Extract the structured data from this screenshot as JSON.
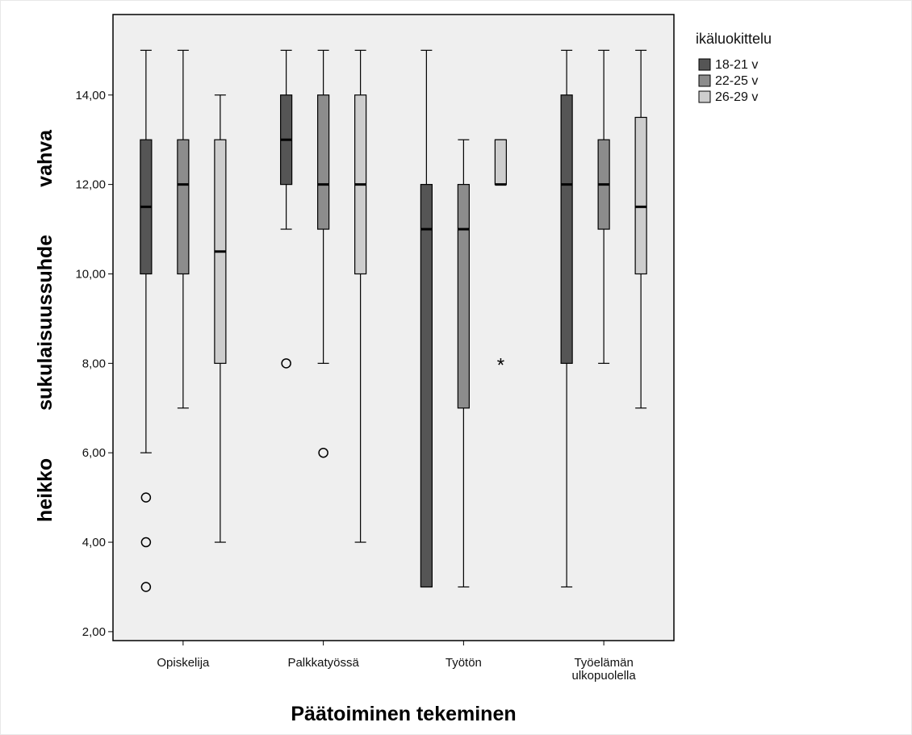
{
  "chart_data": {
    "type": "boxplot",
    "title": "",
    "xlabel": "Päätoiminen tekeminen",
    "ylabel": {
      "low": "heikko",
      "middle": "sukulaisuussuhde",
      "high": "vahva"
    },
    "ylim": [
      1.8,
      15.8
    ],
    "yticks": [
      2,
      4,
      6,
      8,
      10,
      12,
      14
    ],
    "ytick_labels": [
      "2,00",
      "4,00",
      "6,00",
      "8,00",
      "10,00",
      "12,00",
      "14,00"
    ],
    "grid": false,
    "legend": {
      "title": "ikäluokittelu",
      "placement": "top-right",
      "entries": [
        "18-21 v",
        "22-25 v",
        "26-29 v"
      ]
    },
    "categories": [
      {
        "lines": [
          "Opiskelija"
        ]
      },
      {
        "lines": [
          "Palkkatyössä"
        ]
      },
      {
        "lines": [
          "Työtön"
        ]
      },
      {
        "lines": [
          "Työelämän",
          "ulkopuolella"
        ]
      }
    ],
    "series": [
      {
        "name": "18-21 v",
        "color": "#555555",
        "boxes": [
          {
            "min": 6,
            "q1": 10,
            "median": 11.5,
            "q3": 13,
            "max": 15,
            "outliers": [
              5,
              4,
              3
            ],
            "extremes": []
          },
          {
            "min": 11,
            "q1": 12,
            "median": 13,
            "q3": 14,
            "max": 15,
            "outliers": [
              8
            ],
            "extremes": []
          },
          {
            "min": 3,
            "q1": 3,
            "median": 11,
            "q3": 12,
            "max": 15,
            "outliers": [],
            "extremes": []
          },
          {
            "min": 3,
            "q1": 8,
            "median": 12,
            "q3": 14,
            "max": 15,
            "outliers": [],
            "extremes": []
          }
        ]
      },
      {
        "name": "22-25 v",
        "color": "#8c8c8c",
        "boxes": [
          {
            "min": 7,
            "q1": 10,
            "median": 12,
            "q3": 13,
            "max": 15,
            "outliers": [],
            "extremes": []
          },
          {
            "min": 8,
            "q1": 11,
            "median": 12,
            "q3": 14,
            "max": 15,
            "outliers": [
              6
            ],
            "extremes": []
          },
          {
            "min": 3,
            "q1": 7,
            "median": 11,
            "q3": 12,
            "max": 13,
            "outliers": [],
            "extremes": []
          },
          {
            "min": 8,
            "q1": 11,
            "median": 12,
            "q3": 13,
            "max": 15,
            "outliers": [],
            "extremes": []
          }
        ]
      },
      {
        "name": "26-29 v",
        "color": "#cdcdcd",
        "boxes": [
          {
            "min": 4,
            "q1": 8,
            "median": 10.5,
            "q3": 13,
            "max": 14,
            "outliers": [],
            "extremes": []
          },
          {
            "min": 4,
            "q1": 10,
            "median": 12,
            "q3": 14,
            "max": 15,
            "outliers": [],
            "extremes": []
          },
          {
            "min": 12,
            "q1": 12,
            "median": 12,
            "q3": 13,
            "max": 13,
            "outliers": [],
            "extremes": [
              8
            ]
          },
          {
            "min": 7,
            "q1": 10,
            "median": 11.5,
            "q3": 13.5,
            "max": 15,
            "outliers": [],
            "extremes": []
          }
        ]
      }
    ],
    "colors": {
      "plot_background": "#efefef",
      "axis": "#000000"
    }
  }
}
